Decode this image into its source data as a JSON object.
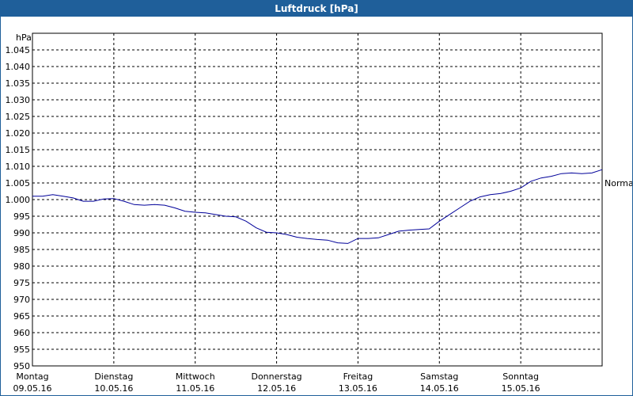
{
  "window": {
    "title": "Luftdruck [hPa]"
  },
  "colors": {
    "titlebar": "#1f5f9a",
    "line": "#000099",
    "grid": "#000000"
  },
  "chart_data": {
    "type": "line",
    "title": "Luftdruck [hPa]",
    "ylabel": "hPa",
    "ylim": [
      950,
      1050
    ],
    "yticks": [
      950,
      955,
      960,
      965,
      970,
      975,
      980,
      985,
      990,
      995,
      1000,
      1005,
      1010,
      1015,
      1020,
      1025,
      1030,
      1035,
      1040,
      1045
    ],
    "ytick_labels": [
      "950",
      "955",
      "960",
      "965",
      "970",
      "975",
      "980",
      "985",
      "990",
      "995",
      "1.000",
      "1.005",
      "1.010",
      "1.015",
      "1.020",
      "1.025",
      "1.030",
      "1.035",
      "1.040",
      "1.045"
    ],
    "xlim": [
      "2016-05-09T00:00",
      "2016-05-16T00:00"
    ],
    "x_ticks": [
      {
        "x": "2016-05-09T00:00",
        "day": "Montag",
        "date": "09.05.16"
      },
      {
        "x": "2016-05-10T00:00",
        "day": "Dienstag",
        "date": "10.05.16"
      },
      {
        "x": "2016-05-11T00:00",
        "day": "Mittwoch",
        "date": "11.05.16"
      },
      {
        "x": "2016-05-12T00:00",
        "day": "Donnerstag",
        "date": "12.05.16"
      },
      {
        "x": "2016-05-13T00:00",
        "day": "Freitag",
        "date": "13.05.16"
      },
      {
        "x": "2016-05-14T00:00",
        "day": "Samstag",
        "date": "14.05.16"
      },
      {
        "x": "2016-05-15T00:00",
        "day": "Sonntag",
        "date": "15.05.16"
      }
    ],
    "grid": true,
    "reference_line": {
      "label": "Normal",
      "y": 1005
    },
    "series": [
      {
        "x": [
          "2016-05-09T00:00",
          "2016-05-09T03:00",
          "2016-05-09T06:00",
          "2016-05-09T09:00",
          "2016-05-09T12:00",
          "2016-05-09T15:00",
          "2016-05-09T18:00",
          "2016-05-09T21:00",
          "2016-05-10T00:00",
          "2016-05-10T03:00",
          "2016-05-10T06:00",
          "2016-05-10T09:00",
          "2016-05-10T12:00",
          "2016-05-10T15:00",
          "2016-05-10T18:00",
          "2016-05-10T21:00",
          "2016-05-11T00:00",
          "2016-05-11T03:00",
          "2016-05-11T06:00",
          "2016-05-11T09:00",
          "2016-05-11T12:00",
          "2016-05-11T15:00",
          "2016-05-11T18:00",
          "2016-05-11T21:00",
          "2016-05-12T00:00",
          "2016-05-12T03:00",
          "2016-05-12T06:00",
          "2016-05-12T09:00",
          "2016-05-12T12:00",
          "2016-05-12T15:00",
          "2016-05-12T18:00",
          "2016-05-12T21:00",
          "2016-05-13T00:00",
          "2016-05-13T03:00",
          "2016-05-13T06:00",
          "2016-05-13T09:00",
          "2016-05-13T12:00",
          "2016-05-13T15:00",
          "2016-05-13T18:00",
          "2016-05-13T21:00",
          "2016-05-14T00:00",
          "2016-05-14T03:00",
          "2016-05-14T06:00",
          "2016-05-14T09:00",
          "2016-05-14T12:00",
          "2016-05-14T15:00",
          "2016-05-14T18:00",
          "2016-05-14T21:00",
          "2016-05-15T00:00",
          "2016-05-15T03:00",
          "2016-05-15T06:00",
          "2016-05-15T09:00",
          "2016-05-15T12:00",
          "2016-05-15T15:00",
          "2016-05-15T18:00",
          "2016-05-15T21:00",
          "2016-05-16T00:00"
        ],
        "values": [
          1001,
          1001,
          1001.5,
          1001,
          1000.5,
          999.5,
          999.5,
          1000.2,
          1000.3,
          999.5,
          998.5,
          998.3,
          998.5,
          998.3,
          997.5,
          996.5,
          996.2,
          996,
          995.5,
          995,
          994.8,
          993.5,
          991.5,
          990.2,
          990,
          989.5,
          988.7,
          988.3,
          988,
          987.8,
          987,
          986.8,
          988.3,
          988.3,
          988.5,
          989.5,
          990.5,
          990.8,
          991,
          991.2,
          993.5,
          995.5,
          997.5,
          999.5,
          1000.8,
          1001.5,
          1001.8,
          1002.5,
          1003.5,
          1005.5,
          1006.5,
          1007,
          1007.8,
          1008,
          1007.8,
          1008,
          1009
        ]
      }
    ]
  }
}
